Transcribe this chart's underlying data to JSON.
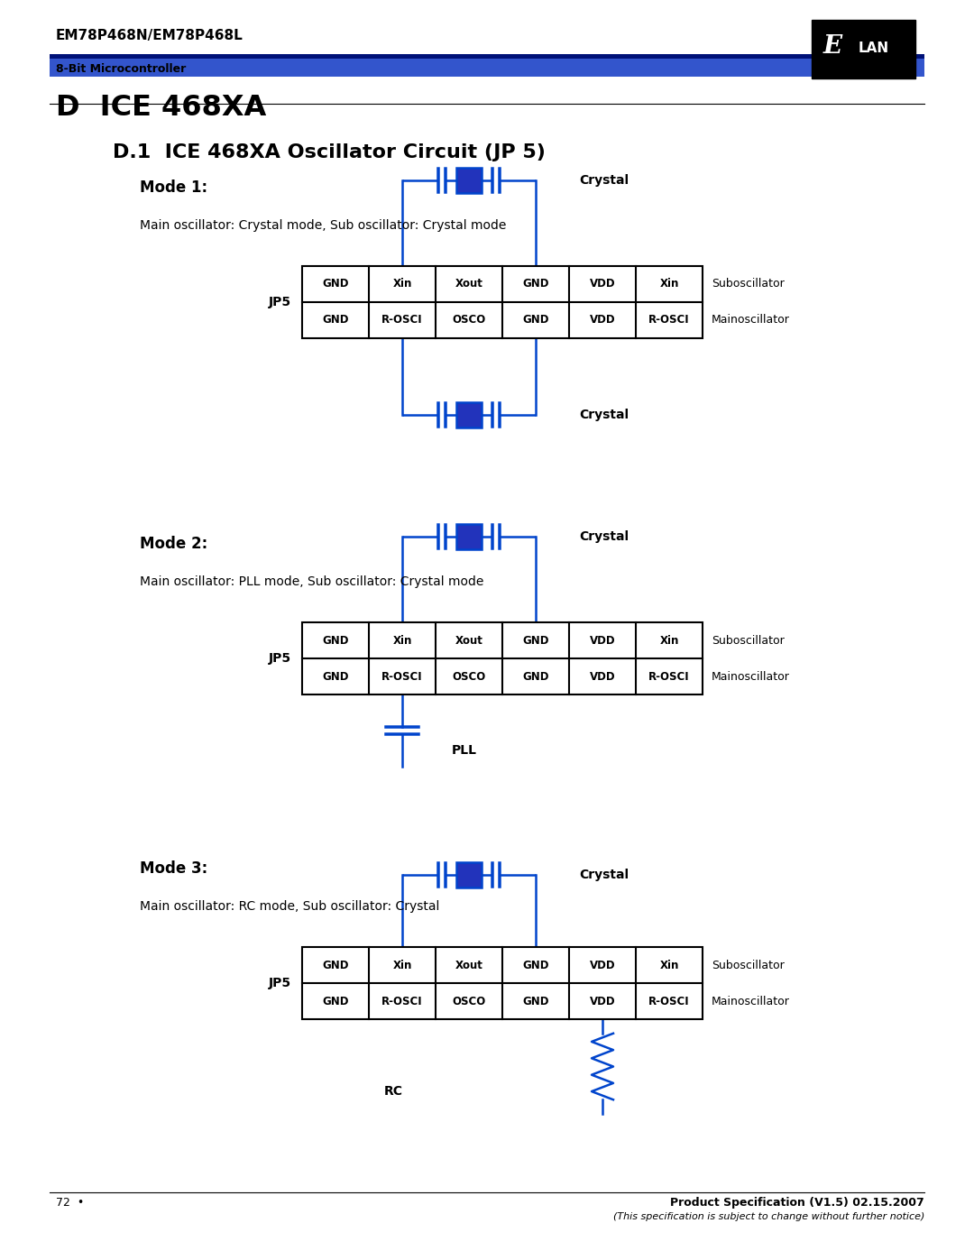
{
  "header_title": "EM78P468N/EM78P468L",
  "header_subtitle": "8-Bit Microcontroller",
  "title_main": "D  ICE 468XA",
  "title_sub": "D.1  ICE 468XA Oscillator Circuit (JP 5)",
  "bg_color": "#ffffff",
  "blue_color": "#0044cc",
  "mode1_title": "Mode 1:",
  "mode1_desc": "Main oscillator: Crystal mode, Sub oscillator: Crystal mode",
  "mode2_title": "Mode 2:",
  "mode2_desc": "Main oscillator: PLL mode, Sub oscillator: Crystal mode",
  "mode3_title": "Mode 3:",
  "mode3_desc": "Main oscillator: RC mode, Sub oscillator: Crystal",
  "jp5_row1": [
    "GND",
    "Xin",
    "Xout",
    "GND",
    "VDD",
    "Xin"
  ],
  "jp5_row2": [
    "GND",
    "R-OSCI",
    "OSCO",
    "GND",
    "VDD",
    "R-OSCI"
  ],
  "row1_label": "Suboscillator",
  "row2_label": "Mainoscillator",
  "footer_page": "72  •",
  "footer_title": "Product Specification (V1.5) 02.15.2007",
  "footer_note": "(This specification is subject to change without further notice)"
}
